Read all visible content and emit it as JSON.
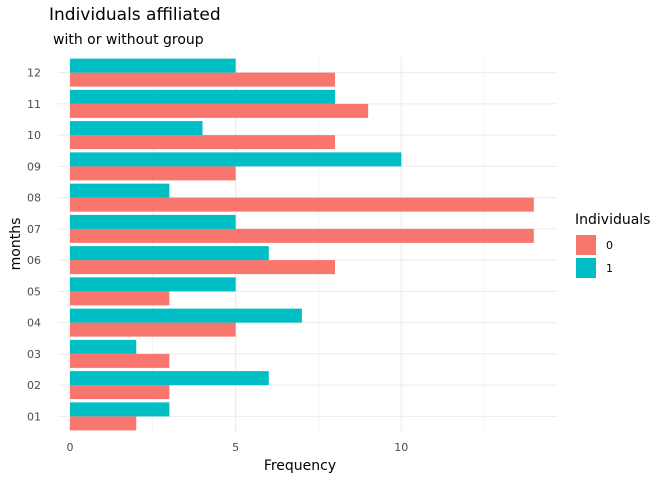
{
  "chart_data": {
    "type": "bar",
    "orientation": "horizontal",
    "title": "Individuals affiliated",
    "subtitle": "with or without group",
    "xlabel": "Frequency",
    "ylabel": "months",
    "categories": [
      "01",
      "02",
      "03",
      "04",
      "05",
      "06",
      "07",
      "08",
      "09",
      "10",
      "11",
      "12"
    ],
    "series": [
      {
        "name": "0",
        "color": "#F8766D",
        "values": [
          2,
          3,
          3,
          5,
          3,
          8,
          14,
          14,
          5,
          8,
          9,
          8
        ]
      },
      {
        "name": "1",
        "color": "#00BFC4",
        "values": [
          3,
          6,
          2,
          7,
          5,
          6,
          5,
          3,
          10,
          4,
          8,
          5
        ]
      }
    ],
    "xlim": [
      0,
      14.7
    ],
    "x_ticks": [
      0,
      5,
      10
    ],
    "x_tick_labels": [
      "0",
      "5",
      "10"
    ],
    "grid": true,
    "legend": {
      "title": "Individuals",
      "position": "right"
    },
    "background": "#FFFFFF",
    "grid_color": "#EBEBEB"
  }
}
